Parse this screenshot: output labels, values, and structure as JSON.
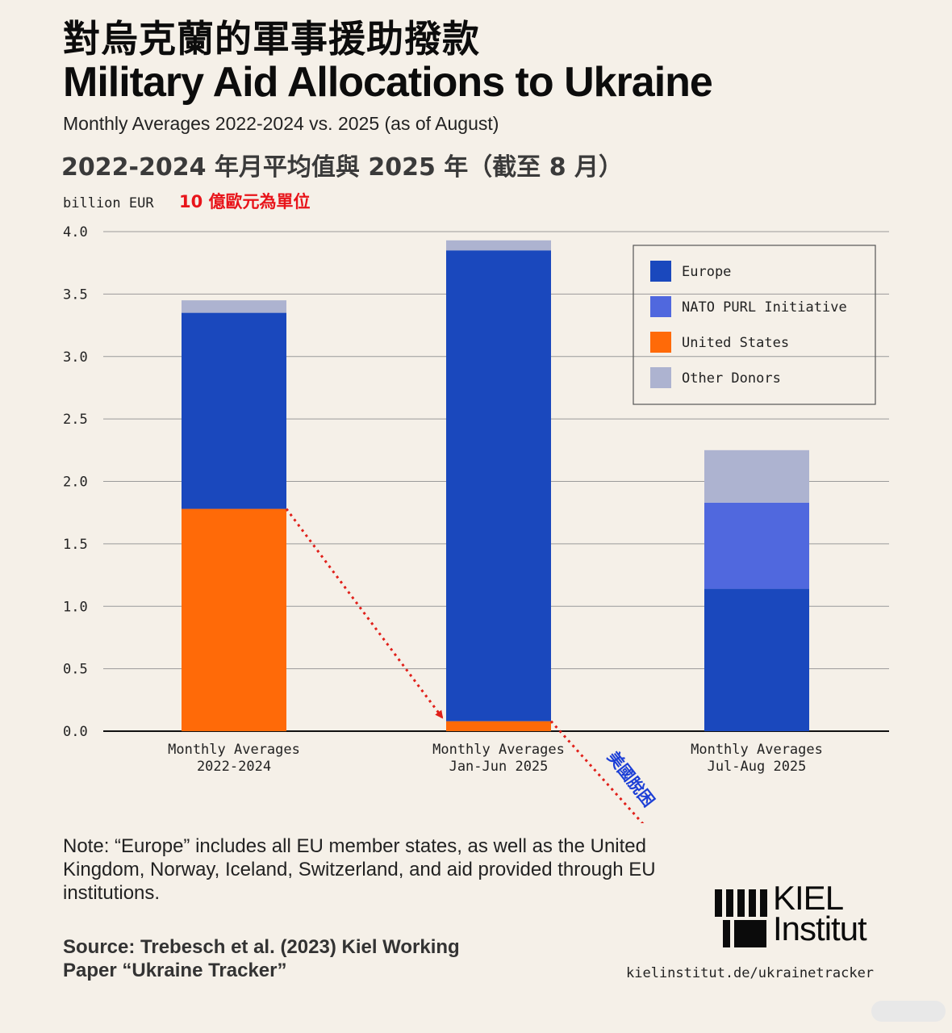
{
  "header": {
    "title_zh": "對烏克蘭的軍事援助撥款",
    "title_en": "Military Aid Allocations to Ukraine",
    "subtitle_en": "Monthly Averages 2022-2024 vs. 2025 (as of August)",
    "subtitle_zh": "2022-2024 年月平均值與 2025 年（截至 8 月）"
  },
  "chart_data": {
    "type": "bar",
    "stacked": true,
    "ylabel": "billion EUR",
    "ylabel_zh": "10 億歐元為單位",
    "ylim": [
      0,
      4.0
    ],
    "yticks": [
      "0.0",
      "0.5",
      "1.0",
      "1.5",
      "2.0",
      "2.5",
      "3.0",
      "3.5",
      "4.0"
    ],
    "categories": [
      [
        "Monthly Averages",
        "2022-2024"
      ],
      [
        "Monthly Averages",
        "Jan-Jun 2025"
      ],
      [
        "Monthly Averages",
        "Jul-Aug 2025"
      ]
    ],
    "series": [
      {
        "name": "United States",
        "color": "#ff6a08",
        "values": [
          1.78,
          0.08,
          0.0
        ]
      },
      {
        "name": "Europe",
        "color": "#1a48bd",
        "values": [
          1.57,
          3.77,
          1.14
        ]
      },
      {
        "name": "NATO PURL Initiative",
        "color": "#5068de",
        "values": [
          0.0,
          0.0,
          0.69
        ]
      },
      {
        "name": "Other Donors",
        "color": "#adb3d0",
        "values": [
          0.1,
          0.08,
          0.42
        ]
      }
    ],
    "legend": {
      "position": "top-right",
      "order": [
        "Europe",
        "NATO PURL Initiative",
        "United States",
        "Other Donors"
      ]
    },
    "annotation": {
      "text": "美國脫困",
      "color": "#1c3fd6",
      "arrow_color": "#e0201a"
    },
    "grid": true
  },
  "footer": {
    "note": "Note: “Europe” includes all EU member states, as well as the United Kingdom, Norway, Iceland, Switzerland, and aid provided through EU institutions.",
    "source": "Source: Trebesch et al. (2023) Kiel Working Paper “Ukraine Tracker”",
    "logo_line1": "KIEL",
    "logo_line2": "Institut",
    "url": "kielinstitut.de/ukrainetracker"
  }
}
